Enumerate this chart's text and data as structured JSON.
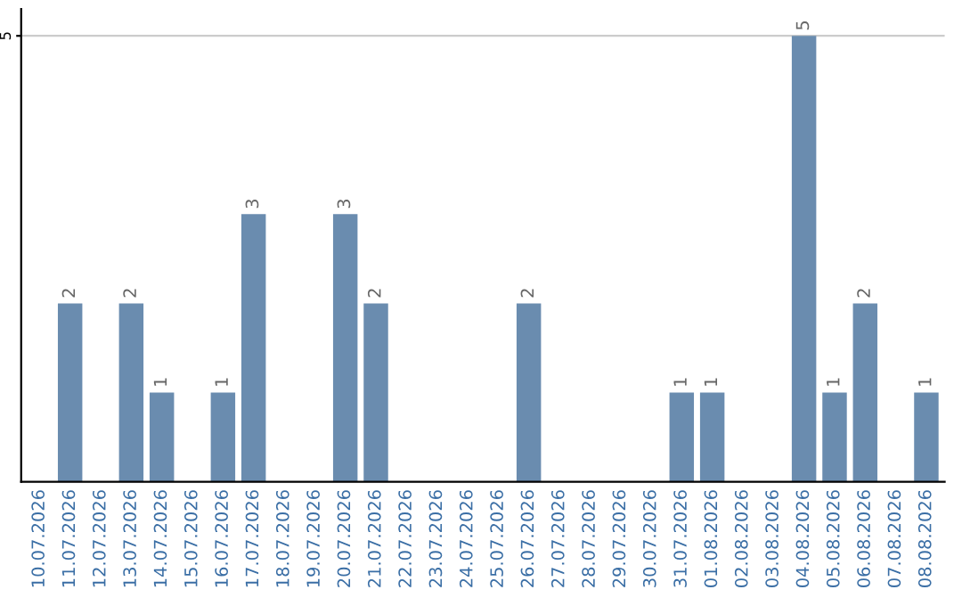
{
  "chart_data": {
    "type": "bar",
    "categories": [
      "10.07.2026",
      "11.07.2026",
      "12.07.2026",
      "13.07.2026",
      "14.07.2026",
      "15.07.2026",
      "16.07.2026",
      "17.07.2026",
      "18.07.2026",
      "19.07.2026",
      "20.07.2026",
      "21.07.2026",
      "22.07.2026",
      "23.07.2026",
      "24.07.2026",
      "25.07.2026",
      "26.07.2026",
      "27.07.2026",
      "28.07.2026",
      "29.07.2026",
      "30.07.2026",
      "31.07.2026",
      "01.08.2026",
      "02.08.2026",
      "03.08.2026",
      "04.08.2026",
      "05.08.2026",
      "06.08.2026",
      "07.08.2026",
      "08.08.2026"
    ],
    "values": [
      0,
      2,
      0,
      2,
      1,
      0,
      1,
      3,
      0,
      0,
      3,
      2,
      0,
      0,
      0,
      0,
      2,
      0,
      0,
      0,
      0,
      1,
      1,
      0,
      0,
      5,
      1,
      2,
      0,
      1
    ],
    "value_labels": [
      null,
      "2",
      null,
      "2",
      "1",
      null,
      "1",
      "3",
      null,
      null,
      "3",
      "2",
      null,
      null,
      null,
      null,
      "2",
      null,
      null,
      null,
      null,
      "1",
      "1",
      null,
      null,
      "5",
      "1",
      "2",
      null,
      "1"
    ],
    "color": "#6a8caf",
    "ylim": [
      0,
      5.3
    ],
    "yticks": [
      5
    ],
    "grid": "y"
  }
}
